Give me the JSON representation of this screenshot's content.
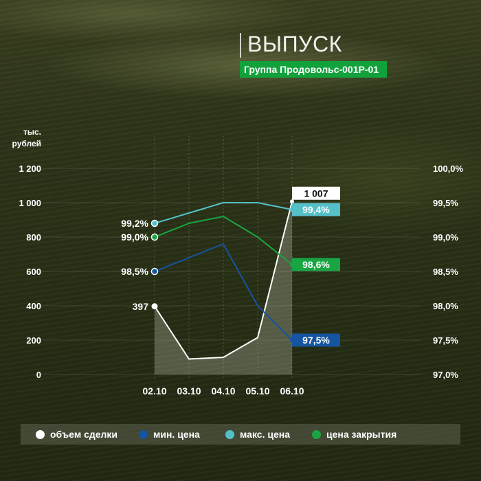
{
  "header": {
    "title": "ВЫПУСК",
    "subtitle": "Группа Продовольс-001Р-01"
  },
  "colors": {
    "volume": "#ffffff",
    "min_price": "#1554a0",
    "max_price": "#55c0c8",
    "close_price": "#1aa544",
    "area_fill": "#d8d8c8"
  },
  "legend": {
    "items": [
      {
        "key": "volume",
        "label": "объем сделки"
      },
      {
        "key": "min_price",
        "label": "мин. цена"
      },
      {
        "key": "max_price",
        "label": "макс. цена"
      },
      {
        "key": "close_price",
        "label": "цена закрытия"
      }
    ]
  },
  "chart_data": {
    "type": "line",
    "categories": [
      "02.10",
      "03.10",
      "04.10",
      "05.10",
      "06.10"
    ],
    "y_left": {
      "unit_label": "тыс. рублей",
      "range": [
        0,
        1200
      ],
      "ticks": [
        0,
        200,
        400,
        600,
        800,
        1000,
        1200
      ],
      "tick_labels": [
        "0",
        "200",
        "400",
        "600",
        "800",
        "1 000",
        "1 200"
      ]
    },
    "y_right": {
      "range": [
        97.0,
        100.0
      ],
      "ticks": [
        97.0,
        97.5,
        98.0,
        98.5,
        99.0,
        99.5,
        100.0
      ],
      "tick_labels": [
        "97,0%",
        "97,5%",
        "98,0%",
        "98,5%",
        "99,0%",
        "99,5%",
        "100,0%"
      ]
    },
    "series": [
      {
        "key": "volume",
        "name": "объем сделки",
        "axis": "left",
        "values": [
          397,
          90,
          100,
          215,
          1007
        ],
        "area": true,
        "start_label": "397",
        "end_label": "1 007"
      },
      {
        "key": "max_price",
        "name": "макс. цена",
        "axis": "right",
        "values": [
          99.2,
          99.35,
          99.5,
          99.5,
          99.4
        ],
        "start_label": "99,2%",
        "end_label": "99,4%"
      },
      {
        "key": "close_price",
        "name": "цена закрытия",
        "axis": "right",
        "values": [
          99.0,
          99.2,
          99.3,
          99.0,
          98.6
        ],
        "start_label": "99,0%",
        "end_label": "98,6%"
      },
      {
        "key": "min_price",
        "name": "мин. цена",
        "axis": "right",
        "values": [
          98.5,
          98.7,
          98.9,
          98.0,
          97.5
        ],
        "start_label": "98,5%",
        "end_label": "97,5%"
      }
    ],
    "grid": "vertical dotted",
    "legend_position": "bottom"
  }
}
